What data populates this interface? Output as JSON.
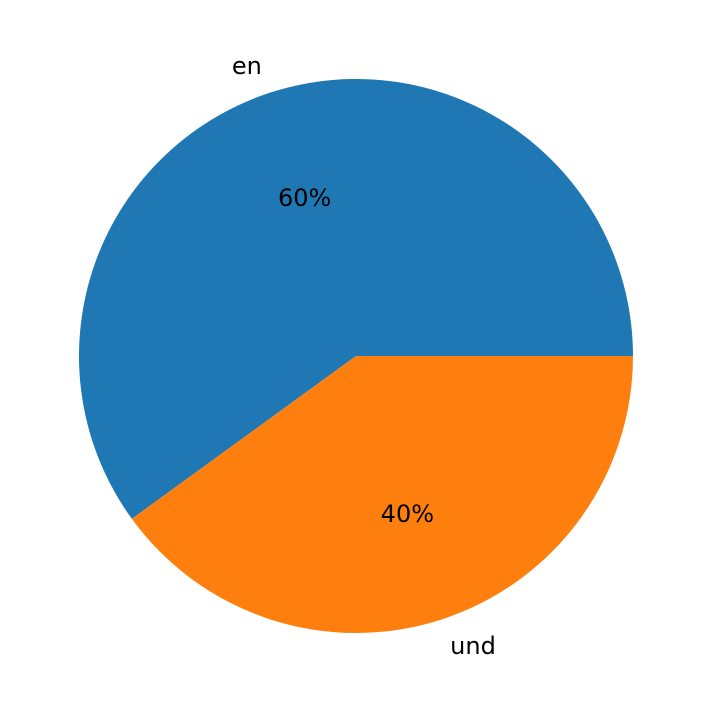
{
  "chart_data": {
    "type": "pie",
    "categories": [
      "en",
      "und"
    ],
    "values": [
      60,
      40
    ],
    "pct_labels": [
      "60%",
      "40%"
    ],
    "colors": [
      "#1f77b4",
      "#ff7f0e"
    ],
    "start_angle_deg": 0,
    "direction": "counterclockwise",
    "title": "",
    "legend": "none"
  }
}
